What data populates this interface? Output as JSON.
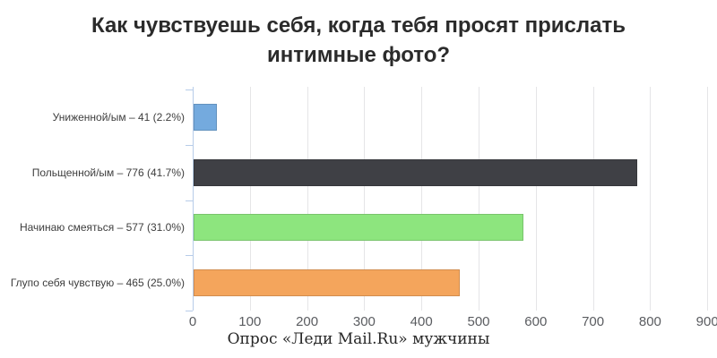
{
  "title_lines": [
    "Как чувствуешь себя, когда тебя просят прислать",
    "интимные фото?"
  ],
  "chart_data": {
    "type": "bar",
    "orientation": "horizontal",
    "title": "Как чувствуешь себя, когда тебя просят прислать интимные фото?",
    "categories": [
      "Униженной/ым",
      "Польщенной/ым",
      "Начинаю смеяться",
      "Глупо себя чувствую"
    ],
    "values": [
      41,
      776,
      577,
      465
    ],
    "percents": [
      2.2,
      41.7,
      31.0,
      25.0
    ],
    "bar_labels": [
      "Униженной/ым – 41 (2.2%)",
      "Польщенной/ым – 776 (41.7%)",
      "Начинаю смеяться – 577 (31.0%)",
      "Глупо себя чувствую – 465 (25.0%)"
    ],
    "bar_colors": [
      "#74aade",
      "#3f4045",
      "#8de57e",
      "#f4a55c"
    ],
    "x_ticks": [
      0,
      100,
      200,
      300,
      400,
      500,
      600,
      700,
      800,
      900
    ],
    "xlim": [
      0,
      900
    ],
    "grid": true,
    "legend": "none",
    "axis_color": "#b7cce9",
    "gridline_color": "#e5e5e7",
    "caption": "Опрос «Леди Mail.Ru» мужчины"
  }
}
